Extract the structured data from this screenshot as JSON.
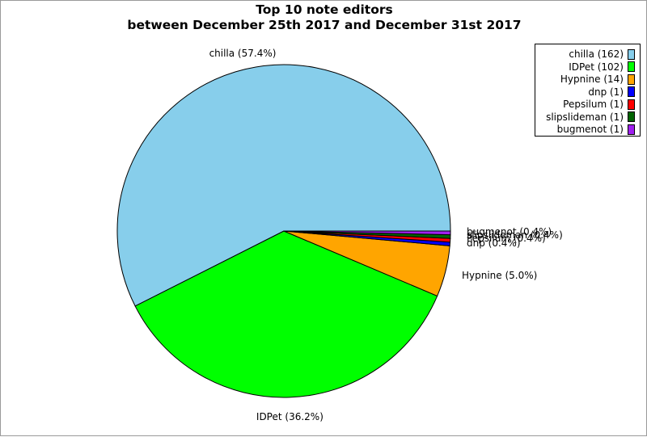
{
  "chart_data": {
    "type": "pie",
    "title": "Top 10 note editors",
    "subtitle": "between December 25th 2017 and December 31st 2017",
    "legend_position": "top-right",
    "slices": [
      {
        "name": "chilla",
        "value": 162,
        "percent_label": "57.4%",
        "legend_label": "chilla (162)",
        "slice_label": "chilla (57.4%)",
        "color": "#87CEEB"
      },
      {
        "name": "IDPet",
        "value": 102,
        "percent_label": "36.2%",
        "legend_label": "IDPet (102)",
        "slice_label": "IDPet (36.2%)",
        "color": "#00FF00"
      },
      {
        "name": "Hypnine",
        "value": 14,
        "percent_label": "5.0%",
        "legend_label": "Hypnine (14)",
        "slice_label": "Hypnine (5.0%)",
        "color": "#FFA500"
      },
      {
        "name": "dnp",
        "value": 1,
        "percent_label": "0.4%",
        "legend_label": "dnp (1)",
        "slice_label": "dnp (0.4%)",
        "color": "#0000FF"
      },
      {
        "name": "Pepsilum",
        "value": 1,
        "percent_label": "0.4%",
        "legend_label": "Pepsilum (1)",
        "slice_label": "Pepsilum (0.4%)",
        "color": "#FF0000"
      },
      {
        "name": "slipslideman",
        "value": 1,
        "percent_label": "0.4%",
        "legend_label": "slipslideman (1)",
        "slice_label": "slipslideman (0.4%)",
        "color": "#006400"
      },
      {
        "name": "bugmenot",
        "value": 1,
        "percent_label": "0.4%",
        "legend_label": "bugmenot (1)",
        "slice_label": "bugmenot (0.4%)",
        "color": "#A020F0"
      }
    ]
  }
}
